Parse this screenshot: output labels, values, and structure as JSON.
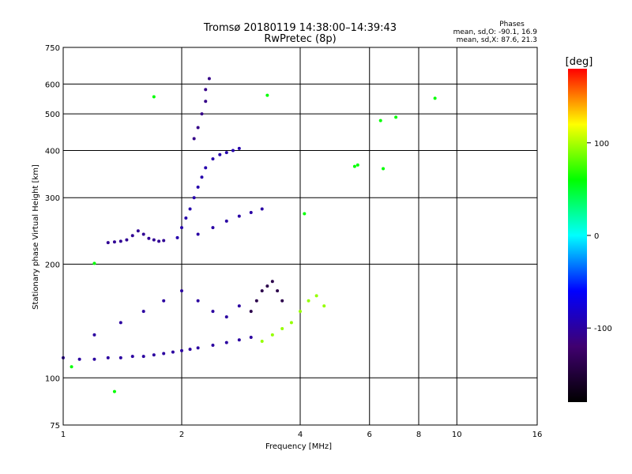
{
  "chart_data": {
    "type": "scatter",
    "title": "Tromsø 20180119 14:38:00–14:39:43",
    "subtitle": "RwPretec (8p)",
    "xlabel": "Frequency [MHz]",
    "ylabel": "Stationary phase Virtual Height [km]",
    "xscale": "log2",
    "yscale": "log",
    "xlim": [
      1,
      16
    ],
    "ylim": [
      75,
      750
    ],
    "x_ticks": [
      1,
      2,
      4,
      6,
      8,
      10,
      16
    ],
    "y_ticks": [
      75,
      100,
      200,
      300,
      400,
      500,
      600,
      750
    ],
    "grid": true,
    "stats": {
      "heading": "Phases",
      "line1": "mean, sd,O: -90.1, 16.9",
      "line2": "mean, sd,X:  87.6, 21.3"
    },
    "colorbar": {
      "label": "[deg]",
      "range": [
        -180,
        180
      ],
      "ticks": [
        100,
        0,
        -100
      ],
      "colors": [
        "#000000",
        "#400070",
        "#0000ff",
        "#00ffff",
        "#00ff00",
        "#ffff00",
        "#ff0000"
      ]
    },
    "series": [
      {
        "cluster": "o-trace",
        "color_deg": -100,
        "x": [
          1.0,
          1.1,
          1.2,
          1.3,
          1.4,
          1.5,
          1.6,
          1.7,
          1.8,
          1.9,
          2.0,
          2.1,
          2.2,
          2.4,
          2.6,
          2.8,
          3.0
        ],
        "y": [
          113,
          112,
          112,
          113,
          113,
          114,
          114,
          115,
          116,
          117,
          118,
          119,
          120,
          122,
          124,
          126,
          128
        ]
      },
      {
        "cluster": "e-layer-cusp",
        "color_deg": -105,
        "x": [
          1.3,
          1.35,
          1.4,
          1.45,
          1.5,
          1.55,
          1.6,
          1.65,
          1.7,
          1.75,
          1.8
        ],
        "y": [
          228,
          229,
          230,
          232,
          238,
          245,
          240,
          234,
          232,
          230,
          231
        ]
      },
      {
        "cluster": "f-layer-trace",
        "color_deg": -95,
        "x": [
          1.95,
          2.0,
          2.05,
          2.1,
          2.15,
          2.2,
          2.25,
          2.3,
          2.4,
          2.5,
          2.6,
          2.7,
          2.8
        ],
        "y": [
          235,
          250,
          265,
          280,
          300,
          320,
          340,
          360,
          380,
          390,
          395,
          400,
          405
        ]
      },
      {
        "cluster": "mid-band",
        "color_deg": -98,
        "x": [
          2.2,
          2.4,
          2.6,
          2.8,
          3.0,
          3.2
        ],
        "y": [
          240,
          250,
          260,
          268,
          274,
          280
        ]
      },
      {
        "cluster": "vertical-spike",
        "color_deg": -110,
        "x": [
          2.15,
          2.2,
          2.25,
          2.3,
          2.3,
          2.35
        ],
        "y": [
          430,
          460,
          500,
          540,
          580,
          620
        ]
      },
      {
        "cluster": "scatter-low",
        "color_deg": -100,
        "x": [
          1.2,
          1.4,
          1.6,
          1.8,
          2.0,
          2.2,
          2.4,
          2.6,
          2.8
        ],
        "y": [
          130,
          140,
          150,
          160,
          170,
          160,
          150,
          145,
          155
        ]
      },
      {
        "cluster": "purple-patch",
        "color_deg": -140,
        "x": [
          3.0,
          3.1,
          3.2,
          3.3,
          3.4,
          3.5,
          3.6
        ],
        "y": [
          150,
          160,
          170,
          175,
          180,
          170,
          160
        ]
      },
      {
        "cluster": "yellow-x-trace",
        "color_deg": 95,
        "x": [
          3.2,
          3.4,
          3.6,
          3.8,
          4.0,
          4.2,
          4.4,
          4.6
        ],
        "y": [
          125,
          130,
          135,
          140,
          150,
          160,
          165,
          155
        ]
      },
      {
        "cluster": "scattered",
        "color_deg": 60,
        "x": [
          1.05,
          1.2,
          1.35,
          1.7,
          3.3,
          4.1,
          5.5,
          5.6,
          6.4,
          6.5,
          7.0,
          8.8
        ],
        "y": [
          107,
          201,
          92,
          555,
          560,
          272,
          363,
          366,
          480,
          358,
          490,
          550
        ]
      }
    ]
  }
}
